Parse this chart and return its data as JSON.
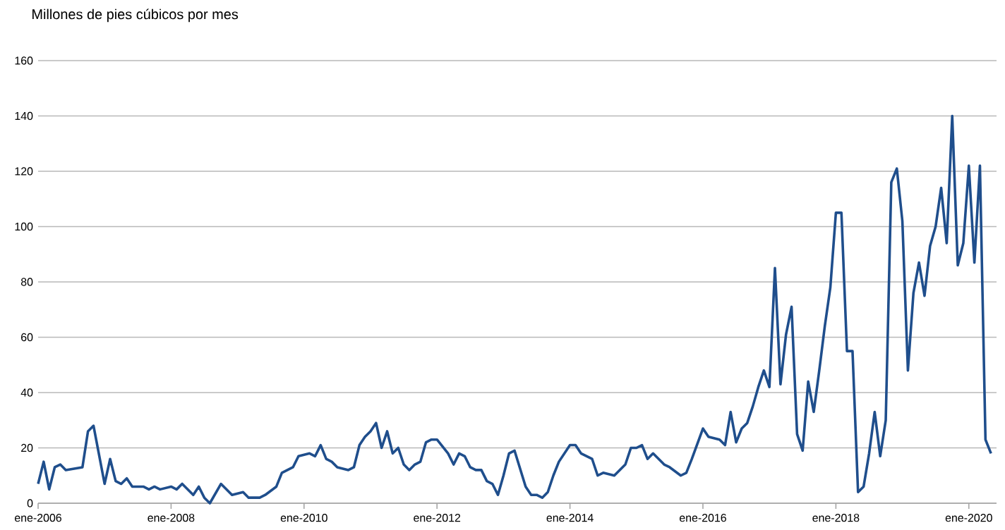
{
  "chart_data": {
    "type": "line",
    "title": "Millones de pies cúbicos por mes",
    "x": [
      "2006-01",
      "2006-02",
      "2006-03",
      "2006-04",
      "2006-05",
      "2006-06",
      "2006-09",
      "2006-10",
      "2006-11",
      "2007-01",
      "2007-02",
      "2007-03",
      "2007-04",
      "2007-05",
      "2007-06",
      "2007-08",
      "2007-09",
      "2007-10",
      "2007-11",
      "2008-01",
      "2008-02",
      "2008-03",
      "2008-05",
      "2008-06",
      "2008-07",
      "2008-08",
      "2008-10",
      "2008-12",
      "2009-02",
      "2009-03",
      "2009-05",
      "2009-06",
      "2009-08",
      "2009-09",
      "2009-11",
      "2009-12",
      "2010-02",
      "2010-03",
      "2010-04",
      "2010-05",
      "2010-06",
      "2010-07",
      "2010-09",
      "2010-10",
      "2010-11",
      "2010-12",
      "2011-01",
      "2011-02",
      "2011-03",
      "2011-04",
      "2011-05",
      "2011-06",
      "2011-07",
      "2011-08",
      "2011-09",
      "2011-10",
      "2011-11",
      "2011-12",
      "2012-01",
      "2012-03",
      "2012-04",
      "2012-05",
      "2012-06",
      "2012-07",
      "2012-08",
      "2012-09",
      "2012-10",
      "2012-11",
      "2012-12",
      "2013-01",
      "2013-02",
      "2013-03",
      "2013-05",
      "2013-06",
      "2013-07",
      "2013-08",
      "2013-09",
      "2013-10",
      "2013-11",
      "2014-01",
      "2014-02",
      "2014-03",
      "2014-05",
      "2014-06",
      "2014-07",
      "2014-09",
      "2014-11",
      "2014-12",
      "2015-01",
      "2015-02",
      "2015-03",
      "2015-04",
      "2015-06",
      "2015-07",
      "2015-09",
      "2015-10",
      "2015-11",
      "2016-01",
      "2016-02",
      "2016-04",
      "2016-05",
      "2016-06",
      "2016-07",
      "2016-08",
      "2016-09",
      "2016-10",
      "2016-11",
      "2016-12",
      "2017-01",
      "2017-02",
      "2017-03",
      "2017-04",
      "2017-05",
      "2017-06",
      "2017-07",
      "2017-08",
      "2017-09",
      "2017-10",
      "2017-11",
      "2017-12",
      "2018-01",
      "2018-02",
      "2018-03",
      "2018-04",
      "2018-05",
      "2018-06",
      "2018-07",
      "2018-08",
      "2018-09",
      "2018-10",
      "2018-11",
      "2018-12",
      "2019-01",
      "2019-02",
      "2019-03",
      "2019-04",
      "2019-05",
      "2019-06",
      "2019-07",
      "2019-08",
      "2019-09",
      "2019-10",
      "2019-11",
      "2019-12",
      "2020-01",
      "2020-02",
      "2020-03",
      "2020-04",
      "2020-05"
    ],
    "series": [
      {
        "color": "#1f4e8c",
        "values": [
          7,
          15,
          5,
          13,
          14,
          12,
          13,
          26,
          28,
          7,
          16,
          8,
          7,
          9,
          6,
          6,
          5,
          6,
          5,
          6,
          5,
          7,
          3,
          6,
          2,
          0,
          7,
          3,
          4,
          2,
          2,
          3,
          6,
          11,
          13,
          17,
          18,
          17,
          21,
          16,
          15,
          13,
          12,
          13,
          21,
          24,
          26,
          29,
          20,
          26,
          18,
          20,
          14,
          12,
          14,
          15,
          22,
          23,
          23,
          18,
          14,
          18,
          17,
          13,
          12,
          12,
          8,
          7,
          3,
          10,
          18,
          19,
          6,
          3,
          3,
          2,
          4,
          10,
          15,
          21,
          21,
          18,
          16,
          10,
          11,
          10,
          14,
          20,
          20,
          21,
          16,
          18,
          14,
          13,
          10,
          11,
          16,
          27,
          24,
          23,
          21,
          33,
          22,
          27,
          29,
          35,
          42,
          48,
          42,
          85,
          43,
          61,
          71,
          25,
          19,
          44,
          33,
          48,
          64,
          78,
          105,
          105,
          55,
          55,
          4,
          6,
          18,
          33,
          17,
          30,
          116,
          121,
          102,
          48,
          76,
          87,
          75,
          93,
          100,
          114,
          94,
          140,
          86,
          94,
          122,
          87,
          122,
          23,
          18
        ]
      }
    ],
    "xlim": [
      "2006-01",
      "2020-06"
    ],
    "xticks": [
      {
        "value": "2006-01",
        "label": "ene-2006"
      },
      {
        "value": "2008-01",
        "label": "ene-2008"
      },
      {
        "value": "2010-01",
        "label": "ene-2010"
      },
      {
        "value": "2012-01",
        "label": "ene-2012"
      },
      {
        "value": "2014-01",
        "label": "ene-2014"
      },
      {
        "value": "2016-01",
        "label": "ene-2016"
      },
      {
        "value": "2018-01",
        "label": "ene-2018"
      },
      {
        "value": "2020-01",
        "label": "ene-2020"
      }
    ],
    "ylim": [
      0,
      160
    ],
    "yticks": [
      0,
      20,
      40,
      60,
      80,
      100,
      120,
      140,
      160
    ],
    "grid": "y",
    "legend": false,
    "marker": "none",
    "line_style": "solid"
  }
}
